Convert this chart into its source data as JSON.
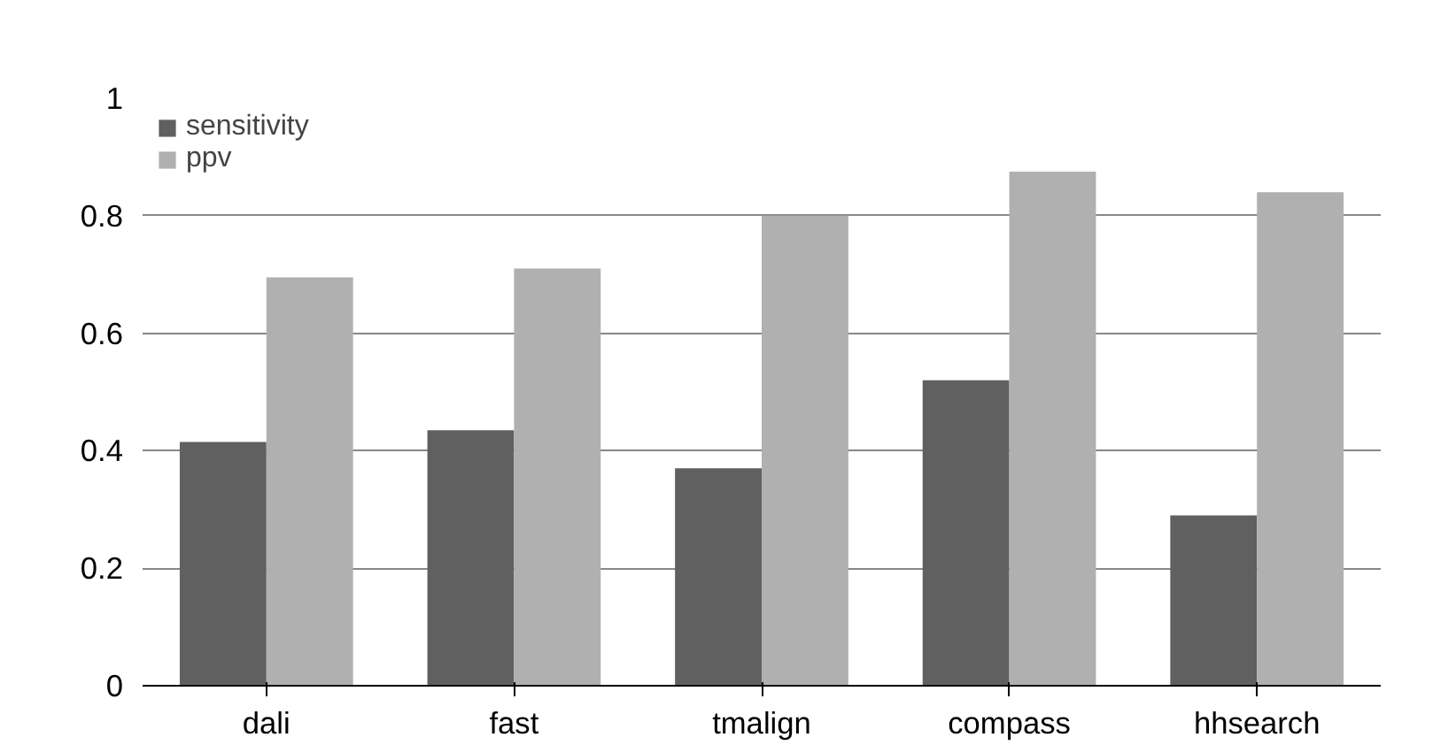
{
  "chart_data": {
    "type": "bar",
    "categories": [
      "dali",
      "fast",
      "tmalign",
      "compass",
      "hhsearch"
    ],
    "series": [
      {
        "name": "sensitivity",
        "color": "#606060",
        "values": [
          0.415,
          0.435,
          0.37,
          0.52,
          0.29
        ]
      },
      {
        "name": "ppv",
        "color": "#b0b0b0",
        "values": [
          0.695,
          0.71,
          0.8,
          0.875,
          0.84
        ]
      }
    ],
    "ylim": [
      0,
      1
    ],
    "yticks": [
      0,
      0.2,
      0.4,
      0.6,
      0.8,
      1
    ],
    "grid": "y",
    "legend": "top left"
  }
}
